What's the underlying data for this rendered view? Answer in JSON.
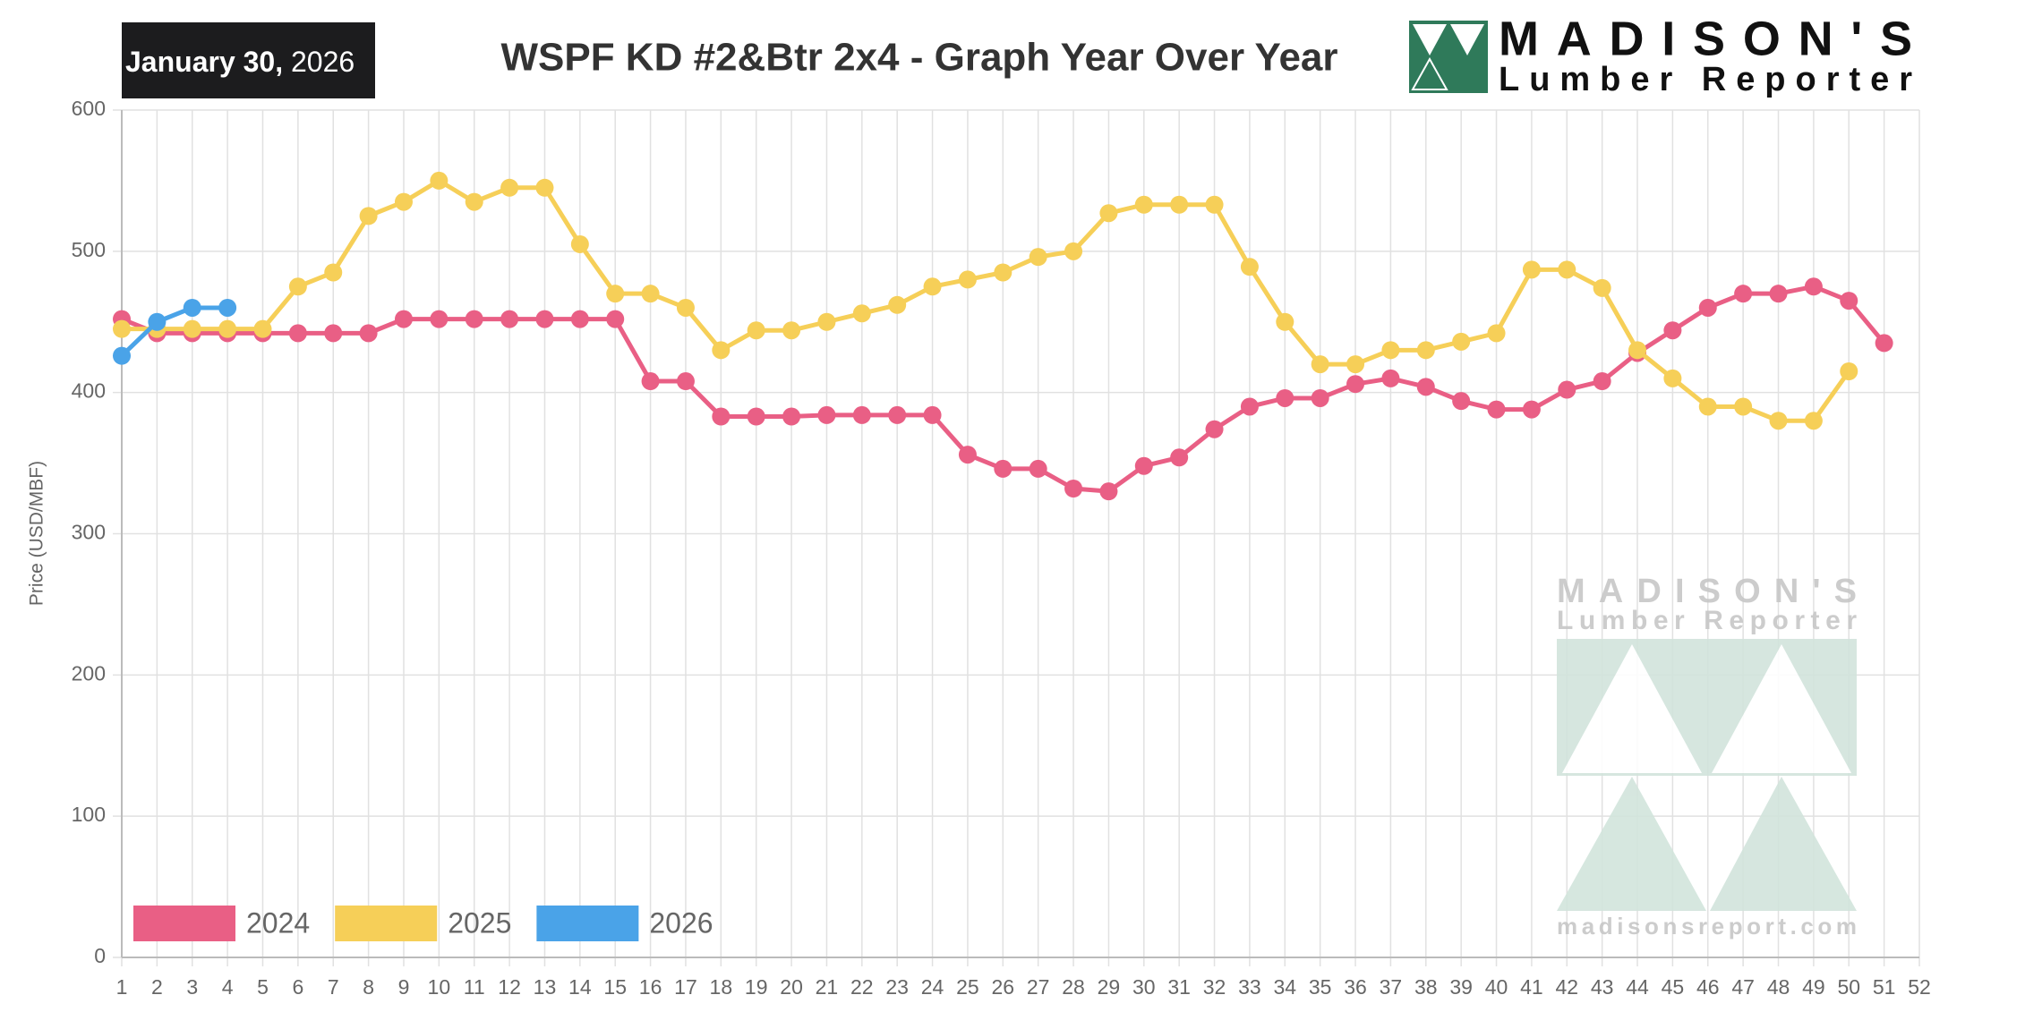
{
  "date": {
    "bold": "January 30,",
    "regular": "2026"
  },
  "logo": {
    "name": "MADISON'S",
    "subtitle": "Lumber Reporter"
  },
  "watermark": {
    "name": "MADISON'S",
    "subtitle": "Lumber Reporter",
    "url": "madisonsreport.com"
  },
  "chart_data": {
    "type": "line",
    "title": "WSPF KD #2&Btr 2x4 - Graph Year Over Year",
    "y_label": "Price (USD/MBF)",
    "x": [
      1,
      2,
      3,
      4,
      5,
      6,
      7,
      8,
      9,
      10,
      11,
      12,
      13,
      14,
      15,
      16,
      17,
      18,
      19,
      20,
      21,
      22,
      23,
      24,
      25,
      26,
      27,
      28,
      29,
      30,
      31,
      32,
      33,
      34,
      35,
      36,
      37,
      38,
      39,
      40,
      41,
      42,
      43,
      44,
      45,
      46,
      47,
      48,
      49,
      50,
      51,
      52
    ],
    "xlim": [
      1,
      52
    ],
    "xticks": [
      1,
      2,
      3,
      4,
      5,
      6,
      7,
      8,
      9,
      10,
      11,
      12,
      13,
      14,
      15,
      16,
      17,
      18,
      19,
      20,
      21,
      22,
      23,
      24,
      25,
      26,
      27,
      28,
      29,
      30,
      31,
      32,
      33,
      34,
      35,
      36,
      37,
      38,
      39,
      40,
      41,
      42,
      43,
      44,
      45,
      46,
      47,
      48,
      49,
      50,
      51,
      52
    ],
    "ylim": [
      0,
      600
    ],
    "yticks": [
      0,
      100,
      200,
      300,
      400,
      500,
      600
    ],
    "grid": true,
    "legend": "bottom-left",
    "series": [
      {
        "name": "2024",
        "color": "#e95f85",
        "values": [
          452,
          442,
          442,
          442,
          442,
          442,
          442,
          442,
          452,
          452,
          452,
          452,
          452,
          452,
          452,
          408,
          408,
          383,
          383,
          383,
          384,
          384,
          384,
          384,
          356,
          346,
          346,
          332,
          330,
          348,
          354,
          374,
          390,
          396,
          396,
          406,
          410,
          404,
          394,
          388,
          388,
          402,
          408,
          428,
          444,
          460,
          470,
          470,
          475,
          465,
          435,
          null
        ]
      },
      {
        "name": "2025",
        "color": "#f6cf58",
        "values": [
          445,
          445,
          445,
          445,
          445,
          475,
          485,
          525,
          535,
          550,
          535,
          545,
          545,
          505,
          470,
          470,
          460,
          430,
          444,
          444,
          450,
          456,
          462,
          475,
          480,
          485,
          496,
          500,
          527,
          533,
          533,
          533,
          489,
          450,
          420,
          420,
          430,
          430,
          436,
          442,
          487,
          487,
          474,
          430,
          410,
          390,
          390,
          380,
          380,
          415,
          null,
          null
        ]
      },
      {
        "name": "2026",
        "color": "#4aa3e8",
        "values": [
          426,
          450,
          460,
          460,
          null,
          null,
          null,
          null,
          null,
          null,
          null,
          null,
          null,
          null,
          null,
          null,
          null,
          null,
          null,
          null,
          null,
          null,
          null,
          null,
          null,
          null,
          null,
          null,
          null,
          null,
          null,
          null,
          null,
          null,
          null,
          null,
          null,
          null,
          null,
          null,
          null,
          null,
          null,
          null,
          null,
          null,
          null,
          null,
          null,
          null,
          null,
          null
        ]
      }
    ]
  }
}
